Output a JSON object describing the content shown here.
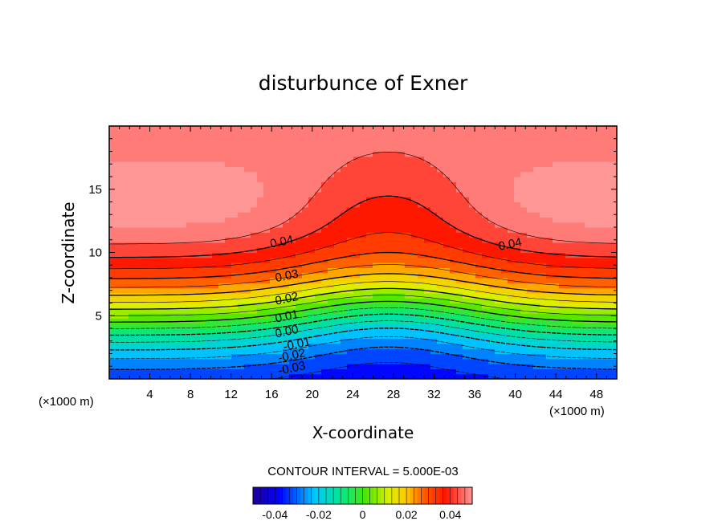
{
  "chart_data": {
    "type": "contour",
    "title": "disturbunce of Exner",
    "xlabel": "X-coordinate",
    "ylabel": "Z-coordinate",
    "x_unit": "(×1000 m)",
    "x_unit_right": "(×1000 m)",
    "xlim": [
      0,
      50
    ],
    "ylim": [
      0,
      20
    ],
    "xticks": [
      4,
      8,
      12,
      16,
      20,
      24,
      28,
      32,
      36,
      40,
      44,
      48
    ],
    "yticks": [
      5,
      10,
      15
    ],
    "contour_interval_text": "CONTOUR INTERVAL = 5.000E-03",
    "contour_interval": 0.005,
    "value_range": [
      -0.05,
      0.05
    ],
    "colormap": "rainbow blue-to-red",
    "negative_contours_dashed": true,
    "contour_labels": [
      {
        "text": "0.04",
        "x": 17,
        "z": 10.8
      },
      {
        "text": "0.04",
        "x": 39.5,
        "z": 10.6
      },
      {
        "text": "0.03",
        "x": 17.5,
        "z": 8.1
      },
      {
        "text": "0.02",
        "x": 17.5,
        "z": 6.3
      },
      {
        "text": "0.01",
        "x": 17.5,
        "z": 4.9
      },
      {
        "text": "0.00",
        "x": 17.5,
        "z": 3.7
      },
      {
        "text": "-0.01",
        "x": 18.5,
        "z": 2.7
      },
      {
        "text": "-0.02",
        "x": 18,
        "z": 1.8
      },
      {
        "text": "-0.03",
        "x": 18,
        "z": 0.8
      }
    ],
    "colorbar": {
      "ticks": [
        "-0.04",
        "-0.02",
        "0",
        "0.02",
        "0.04"
      ],
      "range": [
        -0.05,
        0.05
      ]
    }
  }
}
